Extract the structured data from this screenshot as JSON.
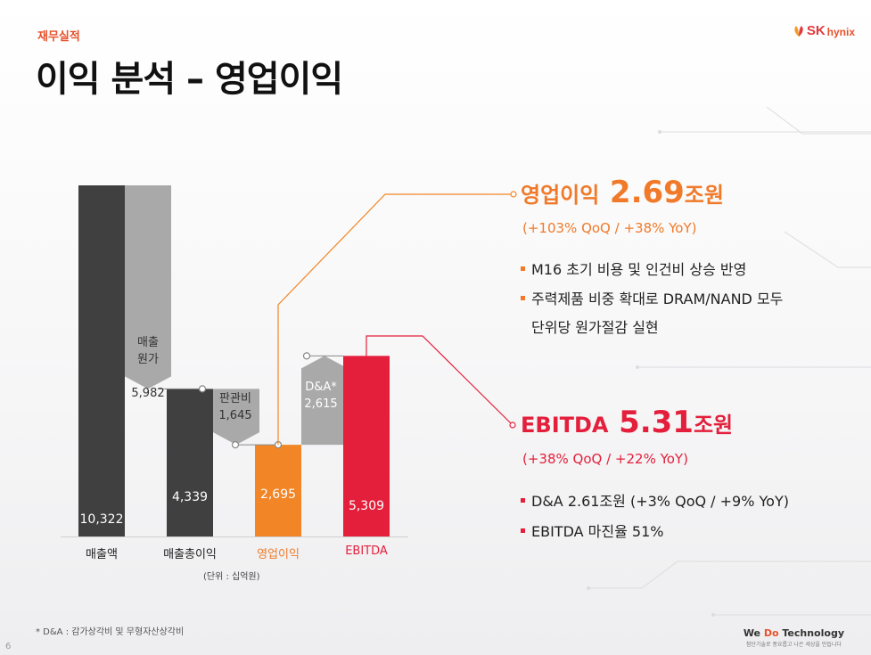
{
  "header": {
    "section_label": "재무실적",
    "title": "이익 분석 – 영업이익",
    "logo_sk": "SK",
    "logo_hynix": "hynix"
  },
  "chart_data": {
    "type": "bar",
    "subtype": "waterfall",
    "categories": [
      "매출액",
      "매출총이익",
      "영업이익",
      "EBITDA"
    ],
    "values": [
      10322,
      4339,
      2695,
      5309
    ],
    "value_labels": [
      "10,322",
      "4,339",
      "2,695",
      "5,309"
    ],
    "steps": [
      {
        "label": "매출\n원가",
        "value_label": "5,982",
        "value": -5982
      },
      {
        "label": "판관비",
        "value_label": "1,645",
        "value": -1645
      },
      {
        "label": "D&A*",
        "value_label": "2,615",
        "value": 2615
      }
    ],
    "unit": "(단위 : 십억원)",
    "ylim": [
      0,
      10322
    ]
  },
  "colors": {
    "dark_bar": "#404041",
    "step_bar": "#a9a9aa",
    "orange": "#f28525",
    "red": "#e41f3b",
    "title_orange": "#f07a2a"
  },
  "operating_profit": {
    "label": "영업이익",
    "value": "2.69",
    "unit": "조원",
    "change": "(+103% QoQ / +38% YoY)",
    "bullets": [
      "M16 초기 비용 및 인건비 상승 반영",
      "주력제품 비중 확대로 DRAM/NAND 모두",
      "단위당 원가절감 실현"
    ]
  },
  "ebitda": {
    "label": "EBITDA",
    "value": "5.31",
    "unit": "조원",
    "change": "(+38% QoQ / +22% YoY)",
    "bullets": [
      "D&A 2.61조원 (+3% QoQ / +9% YoY)",
      "EBITDA 마진율 51%"
    ]
  },
  "footer": {
    "footnote": "* D&A : 감가상각비 및 무형자산상각비",
    "page_number": "6",
    "tagline_prefix": "We ",
    "tagline_highlight": "Do",
    "tagline_suffix": " Technology",
    "tagline_sub": "첨단기술로 풍요롭고 나은 세상을 만듭니다"
  }
}
